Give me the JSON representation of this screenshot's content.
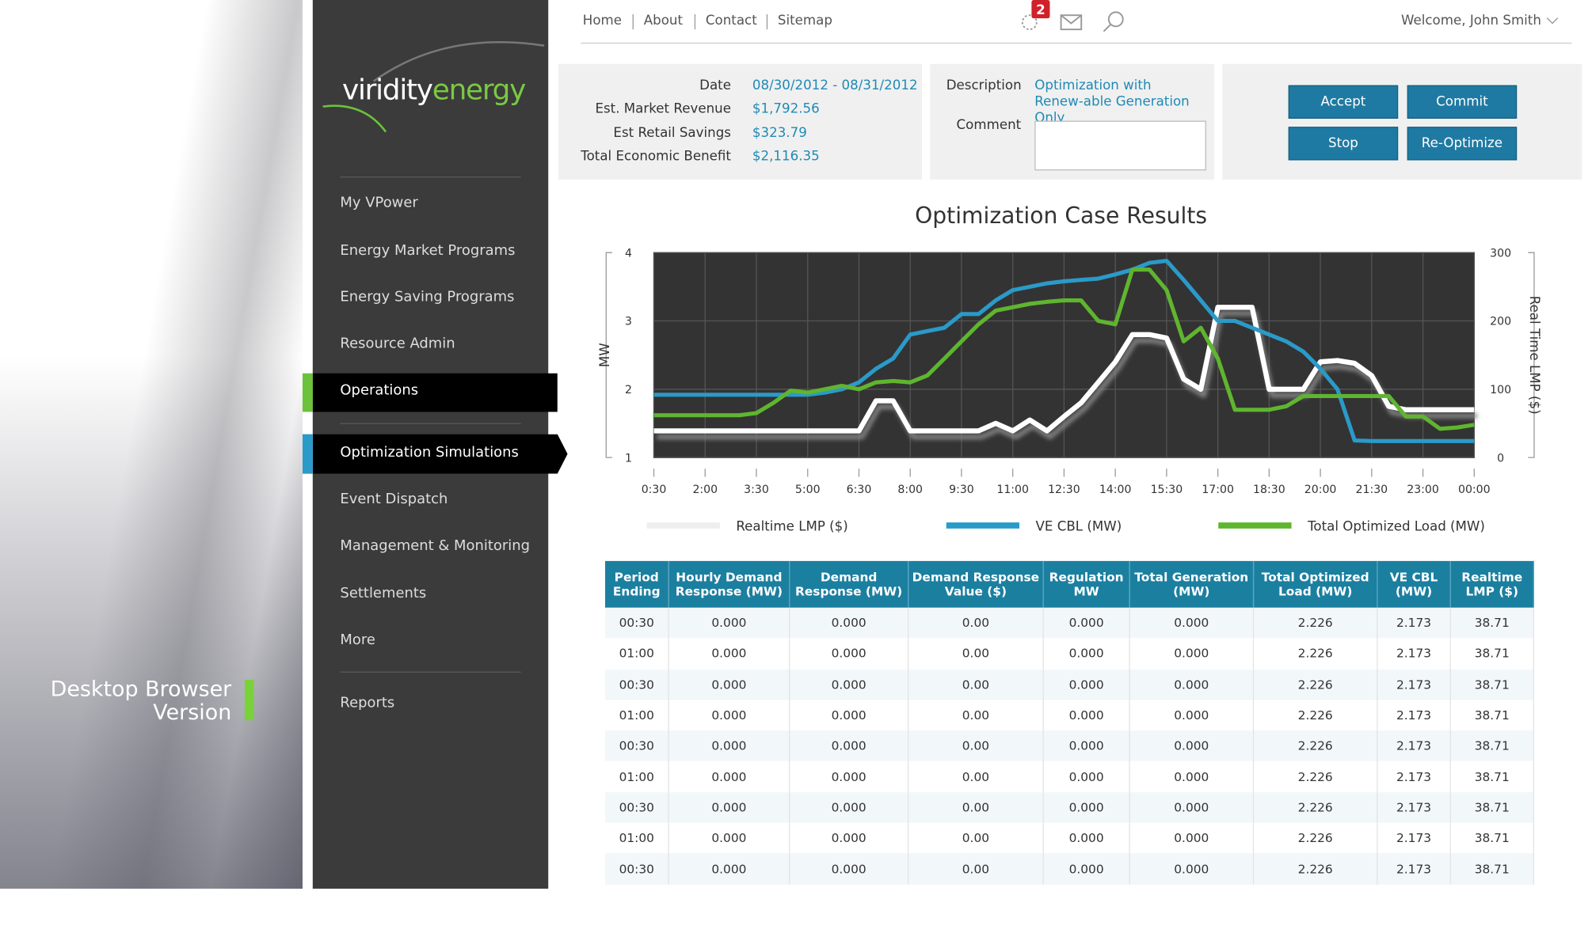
{
  "left_panel": {
    "caption_line1": "Desktop Browser",
    "caption_line2": "Version"
  },
  "logo": {
    "part1": "viridity",
    "part2": "energy"
  },
  "sidebar": {
    "items": [
      "My VPower",
      "Energy Market Programs",
      "Energy Saving Programs",
      "Resource Admin",
      "Operations",
      "Optimization Simulations",
      "Event Dispatch",
      "Management & Monitoring",
      "Settlements",
      "More",
      "Reports"
    ]
  },
  "header": {
    "links": [
      "Home",
      "About",
      "Contact",
      "Sitemap"
    ],
    "badge": 2,
    "welcome": "Welcome, John Smith"
  },
  "summary": {
    "rows": [
      [
        "Date",
        "08/30/2012 - 08/31/2012"
      ],
      [
        "Est. Market Revenue",
        "$1,792.56"
      ],
      [
        "Est Retail Savings",
        "$323.79"
      ],
      [
        "Total Economic Benefit",
        "$2,116.35"
      ]
    ],
    "description_label": "Description",
    "description": "Optimization with Renew-able Generation Only",
    "comment_label": "Comment"
  },
  "buttons": [
    "Accept",
    "Commit",
    "Stop",
    "Re-Optimize"
  ],
  "chart_data": {
    "type": "line",
    "title": "Optimization Case Results",
    "y_label": "MW",
    "y2_label": "Real Time LMP ($)",
    "categories": [
      "0:30",
      null,
      null,
      "2:00",
      null,
      null,
      "3:30",
      null,
      null,
      "5:00",
      null,
      null,
      "6:30",
      null,
      null,
      "8:00",
      null,
      null,
      "9:30",
      null,
      null,
      "11:00",
      null,
      null,
      "12:30",
      null,
      null,
      "14:00",
      null,
      null,
      "15:30",
      null,
      null,
      "17:00",
      null,
      null,
      "18:30",
      null,
      null,
      "20:00",
      null,
      null,
      "21:30",
      null,
      null,
      "23:00",
      null,
      null,
      "00:00"
    ],
    "ylim": [
      1,
      4
    ],
    "yticks": [
      1,
      2,
      3,
      4
    ],
    "y2lim": [
      0,
      300
    ],
    "y2ticks": [
      0,
      100,
      200,
      300
    ],
    "grid": true,
    "series": [
      {
        "name": "Realtime LMP ($)",
        "color": "#ffffff",
        "axis": "y2",
        "values": [
          39,
          39,
          39,
          39,
          39,
          39,
          39,
          39,
          39,
          39,
          39,
          39,
          39,
          83,
          83,
          39,
          39,
          39,
          39,
          39,
          50,
          39,
          55,
          39,
          60,
          80,
          110,
          140,
          180,
          180,
          175,
          115,
          100,
          220,
          220,
          220,
          100,
          100,
          100,
          140,
          142,
          138,
          120,
          75,
          70,
          70,
          70,
          70,
          70
        ]
      },
      {
        "name": "VE CBL (MW)",
        "color": "#2a9ac9",
        "values": [
          1.92,
          1.92,
          1.92,
          1.92,
          1.92,
          1.92,
          1.92,
          1.92,
          1.92,
          1.92,
          1.95,
          2.0,
          2.1,
          2.3,
          2.45,
          2.8,
          2.85,
          2.9,
          3.1,
          3.1,
          3.3,
          3.45,
          3.5,
          3.55,
          3.58,
          3.6,
          3.62,
          3.68,
          3.75,
          3.85,
          3.88,
          3.6,
          3.3,
          3.0,
          3.0,
          2.9,
          2.8,
          2.7,
          2.55,
          2.3,
          2.0,
          1.25,
          1.24,
          1.24,
          1.24,
          1.24,
          1.24,
          1.24,
          1.24
        ]
      },
      {
        "name": "Total Optimized Load (MW)",
        "color": "#5fb52f",
        "values": [
          1.62,
          1.62,
          1.62,
          1.62,
          1.62,
          1.62,
          1.65,
          1.8,
          1.98,
          1.95,
          2.0,
          2.05,
          2.0,
          2.1,
          2.12,
          2.1,
          2.2,
          2.45,
          2.7,
          2.95,
          3.15,
          3.2,
          3.25,
          3.28,
          3.3,
          3.3,
          3.0,
          2.95,
          3.75,
          3.75,
          3.45,
          2.7,
          2.9,
          2.45,
          1.7,
          1.7,
          1.7,
          1.75,
          1.9,
          1.9,
          1.9,
          1.9,
          1.9,
          1.9,
          1.6,
          1.6,
          1.42,
          1.44,
          1.48
        ]
      }
    ]
  },
  "table": {
    "headers": [
      "Period Ending",
      "Hourly Demand Response (MW)",
      "Demand Response (MW)",
      "Demand Response Value ($)",
      "Regulation MW",
      "Total Generation (MW)",
      "Total Optimized Load (MW)",
      "VE CBL (MW)",
      "Realtime LMP ($)"
    ],
    "rows": [
      [
        "00:30",
        "0.000",
        "0.000",
        "0.00",
        "0.000",
        "0.000",
        "2.226",
        "2.173",
        "38.71"
      ],
      [
        "01:00",
        "0.000",
        "0.000",
        "0.00",
        "0.000",
        "0.000",
        "2.226",
        "2.173",
        "38.71"
      ],
      [
        "00:30",
        "0.000",
        "0.000",
        "0.00",
        "0.000",
        "0.000",
        "2.226",
        "2.173",
        "38.71"
      ],
      [
        "01:00",
        "0.000",
        "0.000",
        "0.00",
        "0.000",
        "0.000",
        "2.226",
        "2.173",
        "38.71"
      ],
      [
        "00:30",
        "0.000",
        "0.000",
        "0.00",
        "0.000",
        "0.000",
        "2.226",
        "2.173",
        "38.71"
      ],
      [
        "01:00",
        "0.000",
        "0.000",
        "0.00",
        "0.000",
        "0.000",
        "2.226",
        "2.173",
        "38.71"
      ],
      [
        "00:30",
        "0.000",
        "0.000",
        "0.00",
        "0.000",
        "0.000",
        "2.226",
        "2.173",
        "38.71"
      ],
      [
        "01:00",
        "0.000",
        "0.000",
        "0.00",
        "0.000",
        "0.000",
        "2.226",
        "2.173",
        "38.71"
      ],
      [
        "00:30",
        "0.000",
        "0.000",
        "0.00",
        "0.000",
        "0.000",
        "2.226",
        "2.173",
        "38.71"
      ]
    ]
  }
}
